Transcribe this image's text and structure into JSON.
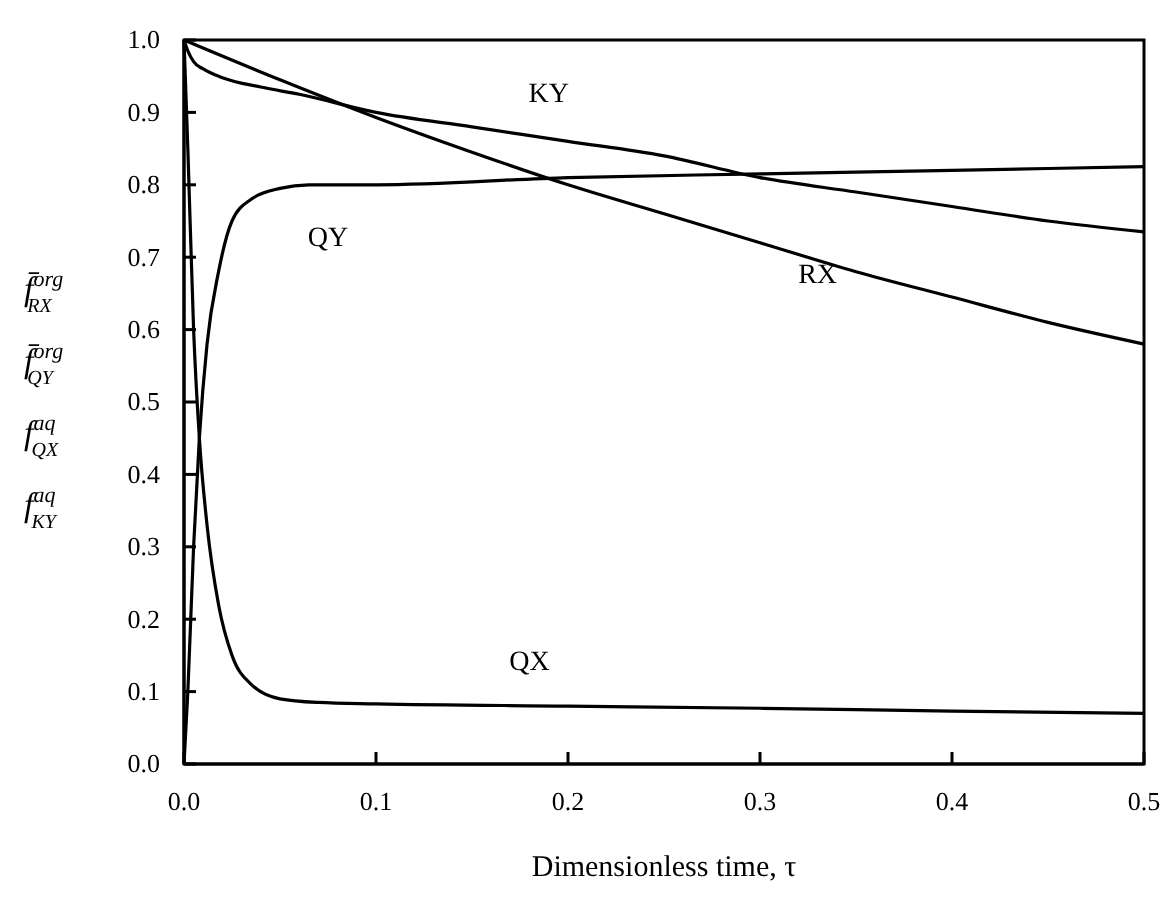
{
  "chart_data": {
    "type": "line",
    "xlabel": "Dimensionless time,  τ",
    "ylabel": "f̄$^{org}$$_{RX}$ f̄$^{org}$$_{QY}$ f$^{aq}$$_{QX}$ f$^{aq}$$_{KY}$",
    "xlim": [
      0,
      0.5
    ],
    "ylim": [
      0,
      1
    ],
    "xticks": [
      {
        "value": 0,
        "label": "0.0"
      },
      0.1,
      0.2,
      0.3,
      0.4,
      0.5
    ],
    "yticks": [
      {
        "value": 0,
        "label": "0.0"
      },
      0.1,
      0.2,
      0.3,
      0.4,
      0.5,
      0.6,
      0.7,
      0.8,
      0.9,
      {
        "value": 1,
        "label": "1.0"
      }
    ],
    "grid": false,
    "legend": false,
    "marker": "none",
    "line_style": "solid",
    "series": [
      {
        "name": "KY",
        "color": "#000000",
        "x": [
          0,
          0.002,
          0.005,
          0.01,
          0.02,
          0.04,
          0.06,
          0.1,
          0.15,
          0.2,
          0.25,
          0.3,
          0.35,
          0.4,
          0.45,
          0.5
        ],
        "values": [
          1,
          0.985,
          0.97,
          0.96,
          0.948,
          0.935,
          0.925,
          0.9,
          0.88,
          0.86,
          0.84,
          0.81,
          0.79,
          0.77,
          0.75,
          0.735
        ]
      },
      {
        "name": "QY",
        "color": "#000000",
        "x": [
          0,
          0.002,
          0.005,
          0.008,
          0.012,
          0.018,
          0.025,
          0.035,
          0.05,
          0.065,
          0.1,
          0.2,
          0.3,
          0.4,
          0.5
        ],
        "values": [
          0,
          0.1,
          0.3,
          0.45,
          0.58,
          0.68,
          0.75,
          0.78,
          0.795,
          0.8,
          0.8,
          0.81,
          0.815,
          0.82,
          0.825
        ]
      },
      {
        "name": "RX",
        "color": "#000000",
        "x": [
          0,
          0.05,
          0.1,
          0.15,
          0.2,
          0.25,
          0.3,
          0.35,
          0.4,
          0.45,
          0.5
        ],
        "values": [
          1,
          0.945,
          0.893,
          0.845,
          0.8,
          0.76,
          0.72,
          0.68,
          0.645,
          0.61,
          0.58
        ]
      },
      {
        "name": "QX",
        "color": "#000000",
        "x": [
          0,
          0.002,
          0.005,
          0.008,
          0.012,
          0.018,
          0.025,
          0.035,
          0.05,
          0.07,
          0.1,
          0.2,
          0.3,
          0.4,
          0.5
        ],
        "values": [
          1,
          0.85,
          0.6,
          0.45,
          0.33,
          0.22,
          0.15,
          0.11,
          0.09,
          0.085,
          0.083,
          0.08,
          0.077,
          0.073,
          0.07
        ]
      }
    ]
  }
}
